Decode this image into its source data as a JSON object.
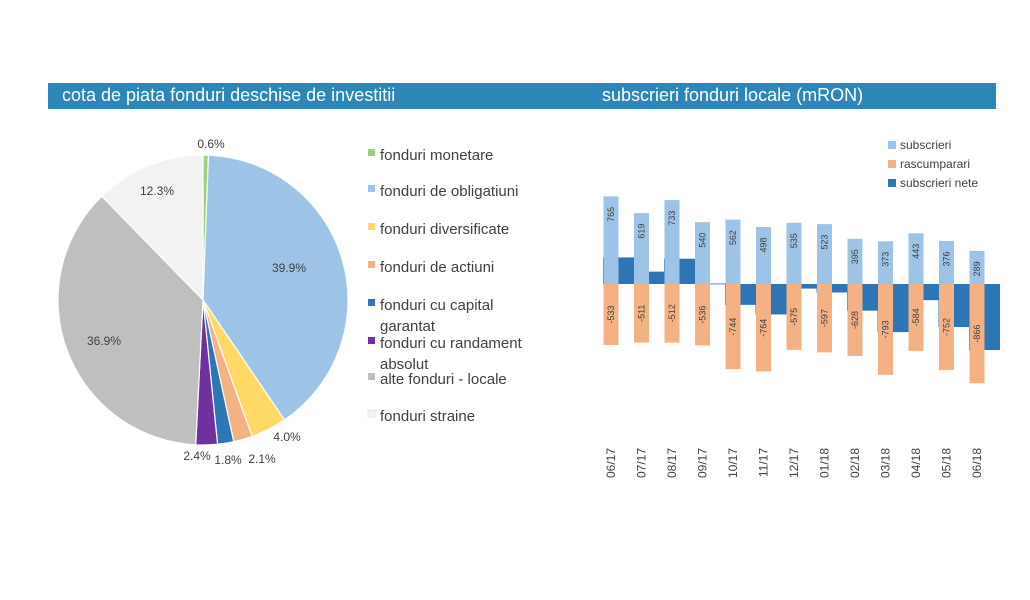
{
  "left_panel": {
    "title": "cota de piata fonduri deschise de investitii"
  },
  "right_panel": {
    "title": "subscrieri fonduri locale (mRON)"
  },
  "chart_data": [
    {
      "type": "pie",
      "title": "cota de piata fonduri deschise de investitii",
      "slices": [
        {
          "name": "fonduri monetare",
          "label_lines": [
            "fonduri monetare"
          ],
          "value": 0.6,
          "label": "0.6%",
          "color": "#9bd07e"
        },
        {
          "name": "fonduri de obligatiuni",
          "label_lines": [
            "fonduri de obligatiuni"
          ],
          "value": 39.9,
          "label": "39.9%",
          "color": "#9dc3e6"
        },
        {
          "name": "fonduri diversificate",
          "label_lines": [
            "fonduri diversificate"
          ],
          "value": 4.0,
          "label": "4.0%",
          "color": "#ffd966"
        },
        {
          "name": "fonduri de actiuni",
          "label_lines": [
            "fonduri de actiuni"
          ],
          "value": 2.1,
          "label": "2.1%",
          "color": "#f4b183"
        },
        {
          "name": "fonduri cu capital garantat",
          "label_lines": [
            "fonduri cu capital",
            "garantat"
          ],
          "value": 1.8,
          "label": "1.8%",
          "color": "#2e75b6"
        },
        {
          "name": "fonduri cu randament absolut",
          "label_lines": [
            "fonduri cu randament",
            "absolut"
          ],
          "value": 2.4,
          "label": "2.4%",
          "color": "#7030a0"
        },
        {
          "name": "alte fonduri - locale",
          "label_lines": [
            "alte fonduri - locale"
          ],
          "value": 36.9,
          "label": "36.9%",
          "color": "#bfbfbf"
        },
        {
          "name": "fonduri straine",
          "label_lines": [
            "fonduri straine"
          ],
          "value": 12.3,
          "label": "12.3%",
          "color": "#f2f2f2"
        }
      ]
    },
    {
      "type": "bar",
      "title": "subscrieri fonduri locale (mRON)",
      "categories": [
        "06/17",
        "07/17",
        "08/17",
        "09/17",
        "10/17",
        "11/17",
        "12/17",
        "01/18",
        "02/18",
        "03/18",
        "04/18",
        "05/18",
        "06/18"
      ],
      "series": [
        {
          "name": "subscrieri",
          "color": "#9dc3e6",
          "values": [
            765,
            619,
            733,
            540,
            562,
            498,
            535,
            523,
            395,
            373,
            443,
            376,
            289
          ]
        },
        {
          "name": "rascumparari",
          "color": "#f4b183",
          "values": [
            -533,
            -511,
            -512,
            -536,
            -744,
            -764,
            -575,
            -597,
            -628,
            -793,
            -584,
            -752,
            -866
          ]
        },
        {
          "name": "subscrieri nete",
          "color": "#2e75b6",
          "values": [
            232,
            108,
            221,
            4,
            -182,
            -266,
            -40,
            -74,
            -233,
            -420,
            -141,
            -376,
            -577
          ]
        }
      ],
      "ylim": [
        -880,
        800
      ]
    }
  ]
}
